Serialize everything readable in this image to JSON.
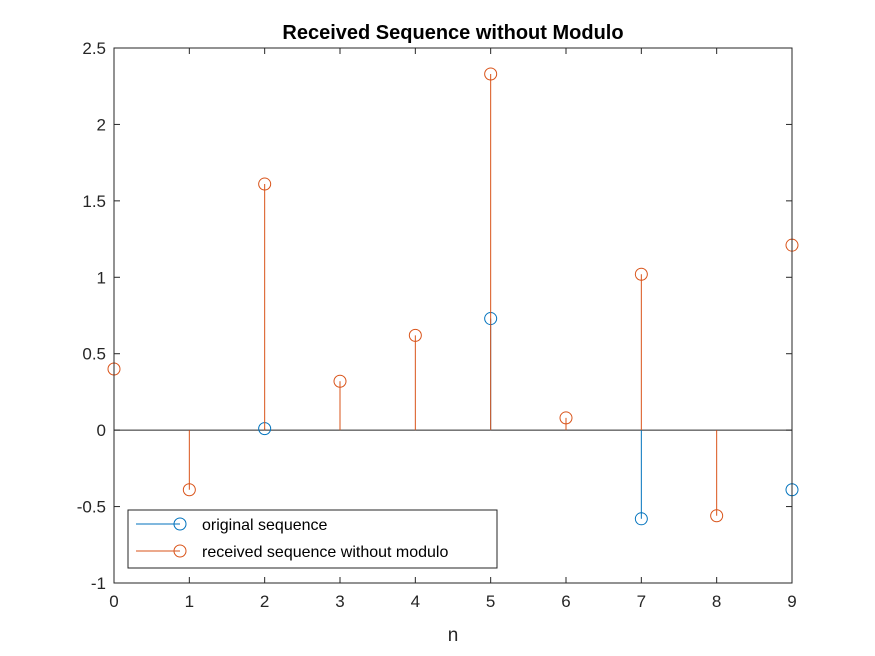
{
  "chart_data": {
    "type": "stem",
    "title": "Received Sequence without Modulo",
    "xlabel": "n",
    "ylabel": "",
    "xlim": [
      0,
      9
    ],
    "ylim": [
      -1,
      2.5
    ],
    "xticks": [
      "0",
      "1",
      "2",
      "3",
      "4",
      "5",
      "6",
      "7",
      "8",
      "9"
    ],
    "yticks": [
      "-1",
      "-0.5",
      "0",
      "0.5",
      "1",
      "1.5",
      "2",
      "2.5"
    ],
    "grid": false,
    "legend_position": "bottom-left",
    "series": [
      {
        "name": "original sequence",
        "color": "#0072BD",
        "x": [
          0,
          1,
          2,
          3,
          4,
          5,
          6,
          7,
          8,
          9
        ],
        "values": [
          0,
          0,
          0.01,
          0,
          0,
          0.73,
          0,
          -0.58,
          0,
          -0.39
        ]
      },
      {
        "name": "received sequence without modulo",
        "color": "#D95319",
        "x": [
          0,
          1,
          2,
          3,
          4,
          5,
          6,
          7,
          8,
          9
        ],
        "values": [
          0.4,
          -0.39,
          1.61,
          0.32,
          0.62,
          2.33,
          0.08,
          1.02,
          -0.56,
          1.21
        ]
      }
    ]
  }
}
